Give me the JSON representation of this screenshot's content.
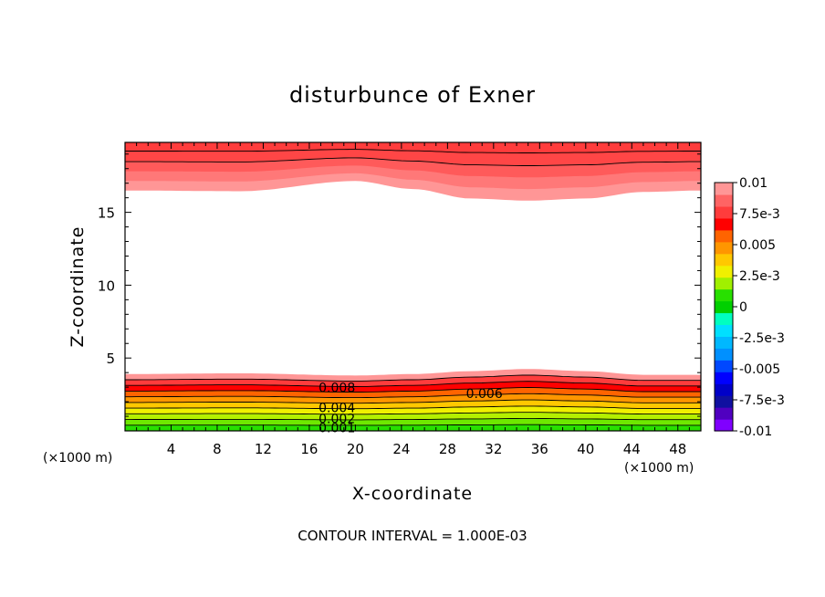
{
  "chart_data": {
    "type": "heatmap",
    "title": "disturbunce of Exner",
    "xlabel": "X-coordinate",
    "ylabel": "Z-coordinate",
    "x_unit": "(×1000 m)",
    "y_unit": "(×1000 m)",
    "xlim": [
      0,
      50
    ],
    "ylim": [
      0,
      19.8
    ],
    "x_ticks": [
      4,
      8,
      12,
      16,
      20,
      24,
      28,
      32,
      36,
      40,
      44,
      48
    ],
    "y_ticks": [
      5,
      10,
      15
    ],
    "footer": "CONTOUR INTERVAL = 1.000E-03",
    "colorbar": {
      "levels": [
        -0.01,
        -0.009,
        -0.008,
        -0.007,
        -0.006,
        -0.005,
        -0.004,
        -0.003,
        -0.002,
        -0.001,
        0,
        0.001,
        0.002,
        0.003,
        0.004,
        0.005,
        0.006,
        0.007,
        0.008,
        0.009,
        0.01
      ],
      "tick_labels": [
        "0.01",
        "7.5e-3",
        "0.005",
        "2.5e-3",
        "0",
        "-2.5e-3",
        "-0.005",
        "-7.5e-3",
        "-0.01"
      ],
      "colors": [
        "#8000ff",
        "#5000c0",
        "#1010a0",
        "#0000c8",
        "#0000ff",
        "#0048ff",
        "#0090ff",
        "#00b8ff",
        "#00e0ff",
        "#00ffc0",
        "#00d000",
        "#28e000",
        "#a0f000",
        "#f0f000",
        "#ffc800",
        "#ff9600",
        "#ff6400",
        "#ff0000",
        "#ff3c3c",
        "#ff6464",
        "#ff9696"
      ]
    },
    "contour_labels": [
      "0.008",
      "0.006",
      "0.004",
      "0.002",
      "0.001"
    ],
    "bottom_field": {
      "top_boundary_x": [
        0,
        10,
        20,
        25,
        30,
        35,
        40,
        45,
        50
      ],
      "top_boundary_z": [
        3.9,
        3.95,
        3.8,
        3.9,
        4.1,
        4.25,
        4.1,
        3.85,
        3.85
      ],
      "bands": [
        {
          "value": 0.001,
          "color": "#28e000"
        },
        {
          "value": 0.002,
          "color": "#6ee800"
        },
        {
          "value": 0.003,
          "color": "#b4f000"
        },
        {
          "value": 0.004,
          "color": "#f0f000"
        },
        {
          "value": 0.005,
          "color": "#ffc800"
        },
        {
          "value": 0.006,
          "color": "#ff9600"
        },
        {
          "value": 0.007,
          "color": "#ff6400"
        },
        {
          "value": 0.008,
          "color": "#ff0000"
        },
        {
          "value": 0.009,
          "color": "#ff3c3c"
        },
        {
          "value": 0.01,
          "color": "#ff9696"
        }
      ]
    },
    "top_field": {
      "bottom_boundary_x": [
        0,
        10,
        20,
        25,
        30,
        35,
        40,
        45,
        50
      ],
      "bottom_boundary_z": [
        16.5,
        16.45,
        17.15,
        16.6,
        15.95,
        15.8,
        15.95,
        16.4,
        16.5
      ],
      "bands": [
        {
          "value": 0.01,
          "color": "#ff9696"
        },
        {
          "value": 0.011,
          "color": "#ff7878"
        },
        {
          "value": 0.012,
          "color": "#ff5a5a"
        },
        {
          "value": 0.013,
          "color": "#ff4646"
        },
        {
          "value": 0.014,
          "color": "#ff3c3c"
        }
      ]
    }
  }
}
